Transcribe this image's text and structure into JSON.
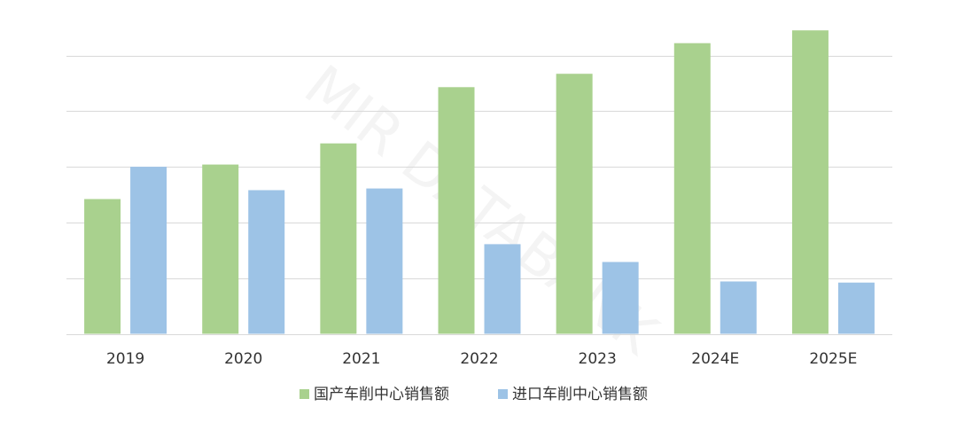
{
  "chart_data": {
    "type": "bar",
    "watermark": "MIR DATABANK",
    "categories": [
      "2019",
      "2020",
      "2021",
      "2022",
      "2023",
      "2024E",
      "2025E"
    ],
    "series": [
      {
        "name": "国产车削中心销售额",
        "color": "#a9d18e",
        "values": [
          2.42,
          3.04,
          3.42,
          4.43,
          4.67,
          5.22,
          5.45
        ]
      },
      {
        "name": "进口车削中心销售额",
        "color": "#9dc3e6",
        "values": [
          3.0,
          2.58,
          2.61,
          1.61,
          1.29,
          0.94,
          0.92
        ]
      }
    ],
    "ylim": [
      0,
      6
    ],
    "grid_lines": [
      0,
      1,
      2,
      3,
      4,
      5
    ],
    "grid": true,
    "legend": "bottom"
  }
}
